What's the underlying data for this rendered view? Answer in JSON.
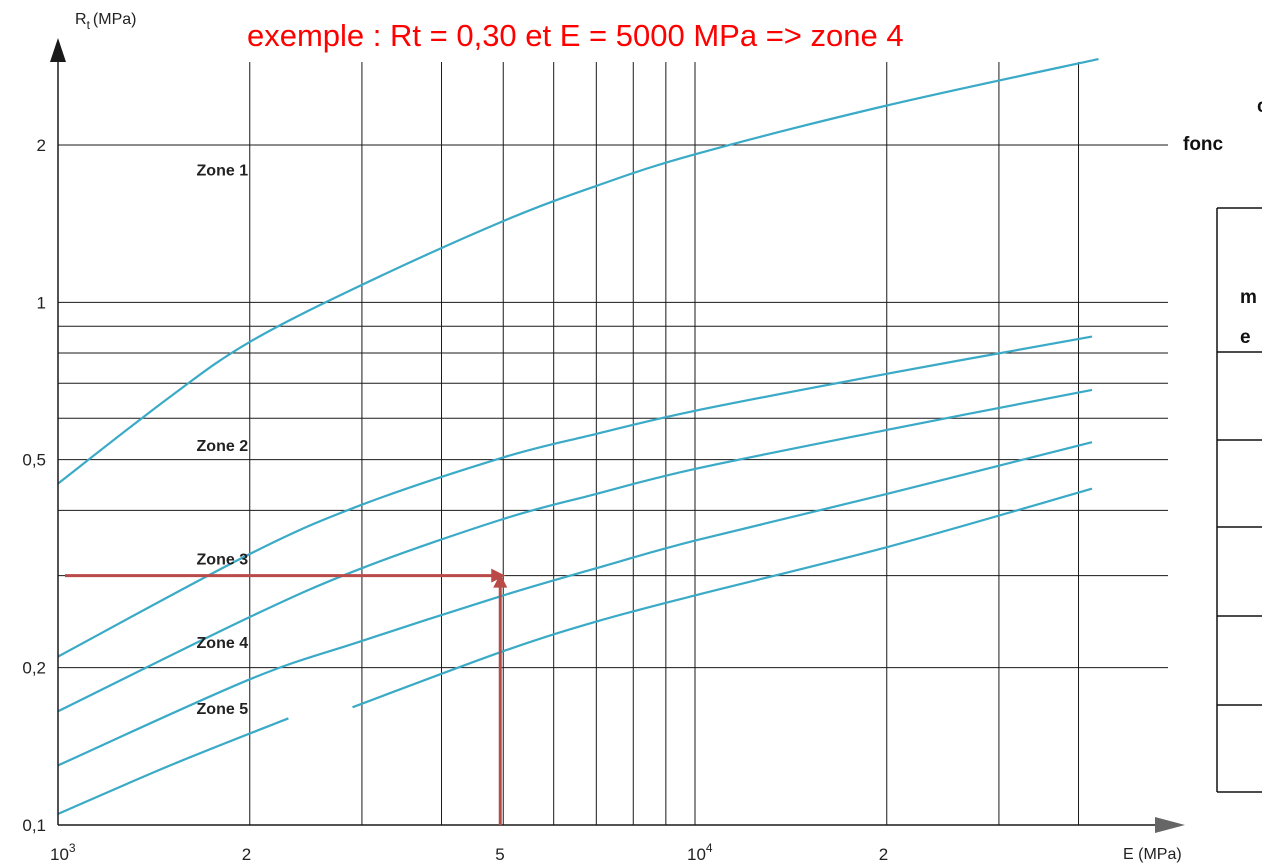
{
  "chart_data": {
    "type": "line",
    "title": "exemple : Rt = 0,30 et E = 5000 MPa => zone 4",
    "xlabel": "E (MPa)",
    "ylabel_main": "R",
    "ylabel_sub": "t",
    "ylabel_unit": "(MPa)",
    "xscale": "log",
    "yscale": "log",
    "xlim": [
      1000,
      43000
    ],
    "ylim": [
      0.1,
      3.0
    ],
    "grid": true,
    "x_ticks": [
      {
        "value": 1000,
        "base": "10",
        "exp": "3"
      },
      {
        "value": 2000,
        "base": "2",
        "exp": ""
      },
      {
        "value": 5000,
        "base": "5",
        "exp": ""
      },
      {
        "value": 10000,
        "base": "10",
        "exp": "4"
      },
      {
        "value": 20000,
        "base": "2",
        "exp": ""
      }
    ],
    "x_gridlines": [
      2000,
      3000,
      4000,
      5000,
      6000,
      7000,
      8000,
      9000,
      10000,
      20000,
      30000,
      40000
    ],
    "y_ticks": [
      {
        "value": 0.1,
        "label": "0,1"
      },
      {
        "value": 0.2,
        "label": "0,2"
      },
      {
        "value": 0.5,
        "label": "0,5"
      },
      {
        "value": 1,
        "label": "1"
      },
      {
        "value": 2,
        "label": "2"
      }
    ],
    "y_gridlines": [
      0.2,
      0.3,
      0.4,
      0.5,
      0.6,
      0.7,
      0.8,
      0.9,
      1,
      2
    ],
    "zone_labels": [
      {
        "text": "Zone 1",
        "x": 1650,
        "y": 1.75
      },
      {
        "text": "Zone 2",
        "x": 1650,
        "y": 0.52
      },
      {
        "text": "Zone 3",
        "x": 1650,
        "y": 0.315
      },
      {
        "text": "Zone 4",
        "x": 1650,
        "y": 0.218
      },
      {
        "text": "Zone 5",
        "x": 1650,
        "y": 0.163
      }
    ],
    "series": [
      {
        "values": [
          [
            1000,
            0.45
          ],
          [
            1500,
            0.66
          ],
          [
            2000,
            0.84
          ],
          [
            3000,
            1.08
          ],
          [
            5000,
            1.43
          ],
          [
            7000,
            1.67
          ],
          [
            10000,
            1.92
          ],
          [
            20000,
            2.38
          ],
          [
            43000,
            2.92
          ]
        ]
      },
      {
        "values": [
          [
            1000,
            0.21
          ],
          [
            2000,
            0.33
          ],
          [
            3000,
            0.41
          ],
          [
            5000,
            0.505
          ],
          [
            7000,
            0.56
          ],
          [
            10000,
            0.62
          ],
          [
            20000,
            0.73
          ],
          [
            42000,
            0.86
          ]
        ]
      },
      {
        "values": [
          [
            1000,
            0.165
          ],
          [
            2000,
            0.25
          ],
          [
            3000,
            0.31
          ],
          [
            5000,
            0.385
          ],
          [
            7000,
            0.43
          ],
          [
            10000,
            0.48
          ],
          [
            20000,
            0.57
          ],
          [
            42000,
            0.68
          ]
        ]
      },
      {
        "values": [
          [
            1000,
            0.13
          ],
          [
            2000,
            0.19
          ],
          [
            3000,
            0.225
          ],
          [
            5000,
            0.275
          ],
          [
            7000,
            0.31
          ],
          [
            10000,
            0.35
          ],
          [
            20000,
            0.43
          ],
          [
            42000,
            0.54
          ]
        ]
      },
      {
        "values": [
          [
            1000,
            0.105
          ],
          [
            1500,
            0.13
          ],
          [
            2300,
            0.16
          ]
        ]
      },
      {
        "values": [
          [
            2900,
            0.168
          ],
          [
            5000,
            0.215
          ],
          [
            7000,
            0.245
          ],
          [
            10000,
            0.275
          ],
          [
            20000,
            0.34
          ],
          [
            42000,
            0.44
          ]
        ]
      }
    ],
    "example": {
      "x": 5000,
      "y": 0.3
    }
  },
  "side_panel": {
    "line1": "c",
    "line2": "fonc",
    "line3": "m",
    "line4": "e"
  },
  "colors": {
    "curve": "#3aaac7",
    "grid": "#1a1a1a",
    "example": "#b94a48",
    "annotation": "#ff0000",
    "axis_arrow": "#666666"
  }
}
